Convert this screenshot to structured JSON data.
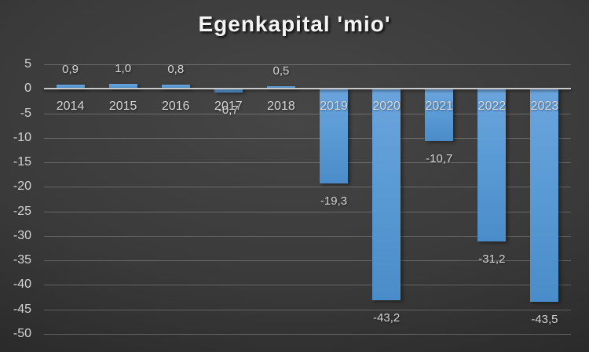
{
  "chart_data": {
    "type": "bar",
    "title": "Egenkapital 'mio'",
    "categories": [
      "2014",
      "2015",
      "2016",
      "2017",
      "2018",
      "2019",
      "2020",
      "2021",
      "2022",
      "2023"
    ],
    "values": [
      0.9,
      1.0,
      0.8,
      -0.7,
      0.5,
      -19.3,
      -43.2,
      -10.7,
      -31.2,
      -43.5
    ],
    "data_labels": [
      "0,9",
      "1,0",
      "0,8",
      "-0,7",
      "0,5",
      "-19,3",
      "-43,2",
      "-10,7",
      "-31,2",
      "-43,5"
    ],
    "y_ticks": [
      5,
      0,
      -5,
      -10,
      -15,
      -20,
      -25,
      -30,
      -35,
      -40,
      -45,
      -50
    ],
    "ylim": [
      -50,
      5
    ],
    "xlabel": "",
    "ylabel": "",
    "grid": true,
    "legend": "none",
    "colors": {
      "bar_light": "#6ba4dd",
      "bar_base": "#5b9bd5",
      "bar_dark": "#4a8cc9",
      "gridline": "rgba(255,255,255,0.22)",
      "zero_line": "#c9c9c9",
      "tick_label": "#d4d4d4",
      "category_label": "#d6d6d6",
      "data_label": "#d6d6d6",
      "title": "#f4f4f4",
      "background_center": "#464646",
      "background_edge": "#1c1c1c"
    }
  }
}
